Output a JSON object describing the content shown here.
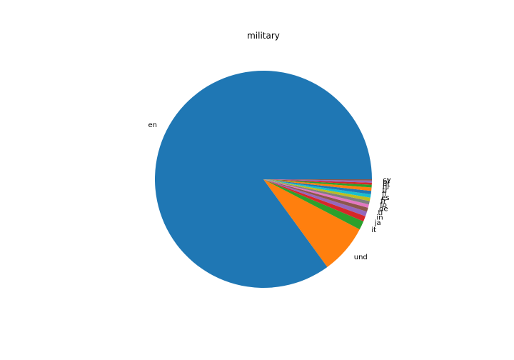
{
  "chart_data": {
    "type": "pie",
    "title": "military",
    "start_angle_deg": 0,
    "direction": "counterclockwise",
    "slices": [
      {
        "label": "en",
        "value": 84.6,
        "color": "#1f77b4"
      },
      {
        "label": "und",
        "value": 7.3,
        "color": "#ff7f0e"
      },
      {
        "label": "it",
        "value": 1.3,
        "color": "#2ca02c"
      },
      {
        "label": "ja",
        "value": 0.8,
        "color": "#d62728"
      },
      {
        "label": "in",
        "value": 0.7,
        "color": "#9467bd"
      },
      {
        "label": "tl",
        "value": 0.6,
        "color": "#8c564b"
      },
      {
        "label": "de",
        "value": 0.5,
        "color": "#e377c2"
      },
      {
        "label": "fo",
        "value": 0.5,
        "color": "#7f7f7f"
      },
      {
        "label": "fr",
        "value": 0.5,
        "color": "#bcbd22"
      },
      {
        "label": "es",
        "value": 0.5,
        "color": "#17becf"
      },
      {
        "label": "fi",
        "value": 0.5,
        "color": "#1f77b4"
      },
      {
        "label": "tr",
        "value": 0.5,
        "color": "#ff7f0e"
      },
      {
        "label": "nl",
        "value": 0.4,
        "color": "#2ca02c"
      },
      {
        "label": "ht",
        "value": 0.3,
        "color": "#d62728"
      },
      {
        "label": "pl",
        "value": 0.3,
        "color": "#9467bd"
      },
      {
        "label": "cy",
        "value": 0.2,
        "color": "#8c564b"
      }
    ]
  }
}
